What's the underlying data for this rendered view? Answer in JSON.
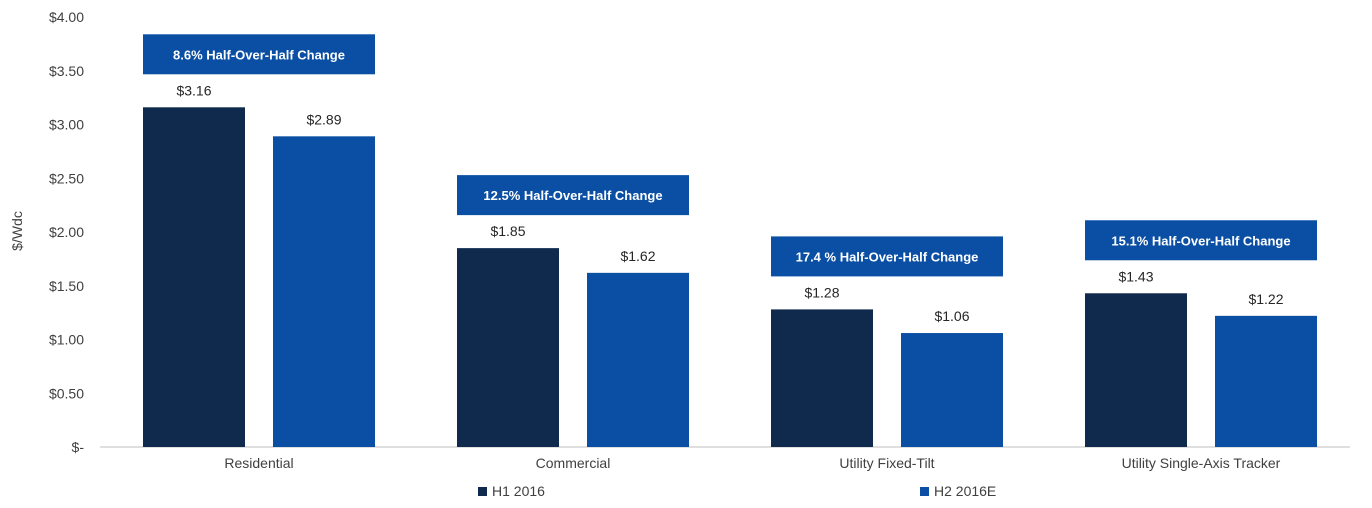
{
  "chart_data": {
    "type": "bar",
    "ylabel": "$/Wdc",
    "ylim": [
      0,
      4
    ],
    "ytick_labels": [
      "$-",
      "$0.50",
      "$1.00",
      "$1.50",
      "$2.00",
      "$2.50",
      "$3.00",
      "$3.50",
      "$4.00"
    ],
    "categories": [
      "Residential",
      "Commercial",
      "Utility Fixed-Tilt",
      "Utility Single-Axis Tracker"
    ],
    "series": [
      {
        "name": "H1 2016",
        "color": "#0f2a4d",
        "values": [
          3.16,
          1.85,
          1.28,
          1.43
        ],
        "labels": [
          "$3.16",
          "$1.85",
          "$1.28",
          "$1.43"
        ]
      },
      {
        "name": "H2 2016E",
        "color": "#0a4fa3",
        "values": [
          2.89,
          1.62,
          1.06,
          1.22
        ],
        "labels": [
          "$2.89",
          "$1.62",
          "$1.06",
          "$1.22"
        ]
      }
    ],
    "annotations": [
      "8.6% Half-Over-Half Change",
      "12.5% Half-Over-Half Change",
      "17.4 % Half-Over-Half Change",
      "15.1% Half-Over-Half Change"
    ],
    "annotation_color": "#0a4fa3",
    "grid": false,
    "legend_position": "bottom"
  }
}
